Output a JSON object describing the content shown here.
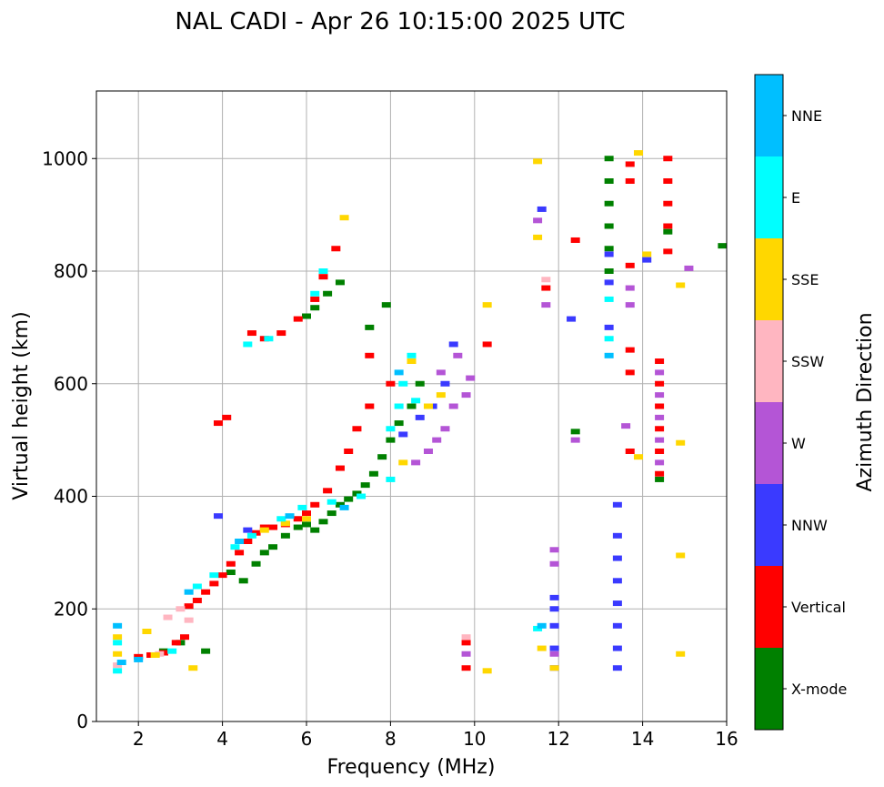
{
  "chart_data": {
    "type": "scatter",
    "title": "NAL CADI - Apr 26 10:15:00 2025 UTC",
    "xlabel": "Frequency (MHz)",
    "ylabel": "Virtual height (km)",
    "xlim": [
      1,
      16
    ],
    "ylim": [
      0,
      1120
    ],
    "xticks": [
      2,
      4,
      6,
      8,
      10,
      12,
      14,
      16
    ],
    "yticks": [
      0,
      200,
      400,
      600,
      800,
      1000
    ],
    "grid": true,
    "colorbar": {
      "label": "Azimuth Direction",
      "categories": [
        {
          "name": "X-mode",
          "color": "#008000"
        },
        {
          "name": "Vertical",
          "color": "#ff0000"
        },
        {
          "name": "NNW",
          "color": "#3a3aff"
        },
        {
          "name": "W",
          "color": "#b455d6"
        },
        {
          "name": "SSW",
          "color": "#ffb6c1"
        },
        {
          "name": "SSE",
          "color": "#ffd700"
        },
        {
          "name": "E",
          "color": "#00ffff"
        },
        {
          "name": "NNE",
          "color": "#00bfff"
        }
      ]
    },
    "series": [
      {
        "name": "X-mode",
        "points": [
          [
            2.6,
            125
          ],
          [
            3.0,
            140
          ],
          [
            3.6,
            125
          ],
          [
            4.2,
            265
          ],
          [
            4.5,
            250
          ],
          [
            4.8,
            280
          ],
          [
            5.0,
            300
          ],
          [
            5.2,
            310
          ],
          [
            5.5,
            330
          ],
          [
            5.8,
            345
          ],
          [
            6.0,
            350
          ],
          [
            6.2,
            340
          ],
          [
            6.4,
            355
          ],
          [
            6.6,
            370
          ],
          [
            6.8,
            385
          ],
          [
            7.0,
            395
          ],
          [
            7.2,
            405
          ],
          [
            7.4,
            420
          ],
          [
            7.6,
            440
          ],
          [
            7.8,
            470
          ],
          [
            8.0,
            500
          ],
          [
            8.2,
            530
          ],
          [
            8.5,
            560
          ],
          [
            8.7,
            600
          ],
          [
            6.0,
            720
          ],
          [
            6.2,
            735
          ],
          [
            6.5,
            760
          ],
          [
            6.8,
            780
          ],
          [
            7.5,
            700
          ],
          [
            7.9,
            740
          ],
          [
            12.4,
            515
          ],
          [
            13.2,
            1000
          ],
          [
            13.2,
            960
          ],
          [
            13.2,
            920
          ],
          [
            13.2,
            880
          ],
          [
            13.2,
            840
          ],
          [
            13.2,
            800
          ],
          [
            14.6,
            870
          ],
          [
            14.4,
            430
          ],
          [
            15.9,
            845
          ]
        ]
      },
      {
        "name": "Vertical",
        "points": [
          [
            2.0,
            115
          ],
          [
            2.3,
            118
          ],
          [
            2.6,
            122
          ],
          [
            2.9,
            140
          ],
          [
            3.1,
            150
          ],
          [
            3.2,
            205
          ],
          [
            3.4,
            215
          ],
          [
            3.6,
            230
          ],
          [
            3.8,
            245
          ],
          [
            4.0,
            260
          ],
          [
            4.2,
            280
          ],
          [
            4.4,
            300
          ],
          [
            4.6,
            320
          ],
          [
            4.8,
            335
          ],
          [
            5.0,
            345
          ],
          [
            5.2,
            345
          ],
          [
            5.5,
            350
          ],
          [
            5.8,
            360
          ],
          [
            6.0,
            370
          ],
          [
            6.2,
            385
          ],
          [
            6.5,
            410
          ],
          [
            6.8,
            450
          ],
          [
            7.0,
            480
          ],
          [
            7.2,
            520
          ],
          [
            7.5,
            560
          ],
          [
            7.5,
            650
          ],
          [
            8.0,
            600
          ],
          [
            3.9,
            530
          ],
          [
            4.1,
            540
          ],
          [
            4.7,
            690
          ],
          [
            5.0,
            680
          ],
          [
            5.4,
            690
          ],
          [
            5.8,
            715
          ],
          [
            6.2,
            750
          ],
          [
            6.4,
            790
          ],
          [
            6.7,
            840
          ],
          [
            9.8,
            140
          ],
          [
            9.8,
            95
          ],
          [
            10.3,
            670
          ],
          [
            12.4,
            855
          ],
          [
            13.7,
            990
          ],
          [
            13.7,
            960
          ],
          [
            13.7,
            810
          ],
          [
            13.7,
            660
          ],
          [
            13.7,
            620
          ],
          [
            13.7,
            480
          ],
          [
            14.6,
            1000
          ],
          [
            14.6,
            960
          ],
          [
            14.6,
            920
          ],
          [
            14.6,
            880
          ],
          [
            14.6,
            835
          ],
          [
            14.4,
            640
          ],
          [
            14.4,
            600
          ],
          [
            14.4,
            560
          ],
          [
            14.4,
            520
          ],
          [
            14.4,
            480
          ],
          [
            14.4,
            440
          ],
          [
            11.7,
            770
          ]
        ]
      },
      {
        "name": "NNW",
        "points": [
          [
            3.9,
            365
          ],
          [
            4.6,
            340
          ],
          [
            8.3,
            510
          ],
          [
            8.7,
            540
          ],
          [
            9.0,
            560
          ],
          [
            9.3,
            600
          ],
          [
            9.5,
            670
          ],
          [
            11.6,
            910
          ],
          [
            12.3,
            715
          ],
          [
            14.1,
            820
          ],
          [
            11.9,
            220
          ],
          [
            11.9,
            200
          ],
          [
            11.9,
            170
          ],
          [
            11.9,
            130
          ],
          [
            11.9,
            95
          ],
          [
            13.4,
            385
          ],
          [
            13.4,
            330
          ],
          [
            13.4,
            290
          ],
          [
            13.4,
            250
          ],
          [
            13.4,
            210
          ],
          [
            13.4,
            170
          ],
          [
            13.4,
            130
          ],
          [
            13.4,
            95
          ],
          [
            13.2,
            830
          ],
          [
            13.2,
            780
          ],
          [
            13.2,
            700
          ]
        ]
      },
      {
        "name": "W",
        "points": [
          [
            8.6,
            460
          ],
          [
            8.9,
            480
          ],
          [
            9.1,
            500
          ],
          [
            9.3,
            520
          ],
          [
            9.5,
            560
          ],
          [
            9.8,
            580
          ],
          [
            9.9,
            610
          ],
          [
            9.6,
            650
          ],
          [
            9.2,
            620
          ],
          [
            11.9,
            305
          ],
          [
            11.9,
            280
          ],
          [
            11.9,
            120
          ],
          [
            12.4,
            500
          ],
          [
            11.5,
            890
          ],
          [
            11.7,
            740
          ],
          [
            13.6,
            525
          ],
          [
            13.7,
            770
          ],
          [
            13.7,
            740
          ],
          [
            14.4,
            620
          ],
          [
            14.4,
            580
          ],
          [
            14.4,
            540
          ],
          [
            14.4,
            500
          ],
          [
            14.4,
            460
          ],
          [
            15.1,
            805
          ],
          [
            9.8,
            120
          ]
        ]
      },
      {
        "name": "SSW",
        "points": [
          [
            1.5,
            100
          ],
          [
            2.5,
            120
          ],
          [
            2.7,
            185
          ],
          [
            3.0,
            200
          ],
          [
            3.2,
            180
          ],
          [
            11.7,
            785
          ],
          [
            9.8,
            150
          ]
        ]
      },
      {
        "name": "SSE",
        "points": [
          [
            1.5,
            120
          ],
          [
            1.5,
            150
          ],
          [
            2.2,
            160
          ],
          [
            2.4,
            118
          ],
          [
            3.3,
            95
          ],
          [
            5.0,
            340
          ],
          [
            5.5,
            352
          ],
          [
            6.0,
            360
          ],
          [
            6.9,
            895
          ],
          [
            8.3,
            460
          ],
          [
            8.5,
            640
          ],
          [
            8.9,
            560
          ],
          [
            9.2,
            580
          ],
          [
            10.3,
            740
          ],
          [
            10.3,
            90
          ],
          [
            11.5,
            995
          ],
          [
            11.5,
            860
          ],
          [
            11.6,
            130
          ],
          [
            11.9,
            95
          ],
          [
            13.9,
            1010
          ],
          [
            14.1,
            830
          ],
          [
            13.9,
            470
          ],
          [
            14.9,
            775
          ],
          [
            14.9,
            495
          ],
          [
            14.9,
            295
          ],
          [
            14.9,
            120
          ]
        ]
      },
      {
        "name": "E",
        "points": [
          [
            1.5,
            90
          ],
          [
            1.5,
            140
          ],
          [
            2.8,
            125
          ],
          [
            3.4,
            240
          ],
          [
            3.8,
            260
          ],
          [
            4.3,
            310
          ],
          [
            4.7,
            330
          ],
          [
            5.4,
            360
          ],
          [
            5.9,
            380
          ],
          [
            6.6,
            390
          ],
          [
            7.3,
            400
          ],
          [
            8.0,
            430
          ],
          [
            8.2,
            560
          ],
          [
            8.6,
            570
          ],
          [
            4.6,
            670
          ],
          [
            5.1,
            680
          ],
          [
            6.2,
            760
          ],
          [
            6.4,
            800
          ],
          [
            8.0,
            520
          ],
          [
            8.3,
            600
          ],
          [
            8.5,
            650
          ],
          [
            11.5,
            165
          ],
          [
            13.2,
            750
          ],
          [
            13.2,
            680
          ]
        ]
      },
      {
        "name": "NNE",
        "points": [
          [
            1.5,
            170
          ],
          [
            1.6,
            105
          ],
          [
            2.0,
            110
          ],
          [
            3.2,
            230
          ],
          [
            4.4,
            320
          ],
          [
            5.6,
            365
          ],
          [
            6.9,
            380
          ],
          [
            8.2,
            620
          ],
          [
            11.6,
            170
          ],
          [
            13.2,
            650
          ]
        ]
      }
    ]
  }
}
